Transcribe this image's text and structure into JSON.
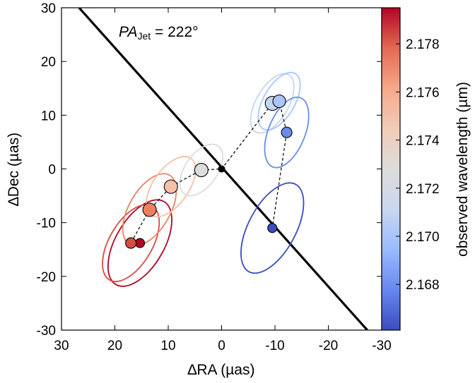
{
  "chart_data": {
    "type": "scatter",
    "title": "",
    "annotation": {
      "main": "PA",
      "subscript": "Jet",
      "rest": " = 222°"
    },
    "xlabel": "∆RA (µas)",
    "ylabel": "∆Dec (µas)",
    "xlim": [
      30,
      -30
    ],
    "ylim": [
      -30,
      30
    ],
    "x_ticks": [
      30,
      20,
      10,
      0,
      -10,
      -20,
      -30
    ],
    "x_tick_labels": [
      "30",
      "20",
      "10",
      "0",
      "-10",
      "-20",
      "-30"
    ],
    "y_ticks": [
      30,
      20,
      10,
      0,
      -10,
      -20,
      -30
    ],
    "y_tick_labels": [
      "30",
      "20",
      "10",
      "0",
      "-10",
      "-20",
      "-30"
    ],
    "grid": false,
    "jet_line": {
      "position_angle_deg": 222,
      "points": [
        [
          26.7,
          30
        ],
        [
          -27.3,
          -30
        ]
      ],
      "color": "#000000"
    },
    "points": [
      {
        "x": 15.3,
        "y": -13.8,
        "wavelength": 2.179,
        "color": "#b40426"
      },
      {
        "x": 17.0,
        "y": -13.8,
        "wavelength": 2.1775,
        "color": "#d44e41"
      },
      {
        "x": 13.5,
        "y": -7.6,
        "wavelength": 2.176,
        "color": "#ec8062"
      },
      {
        "x": 9.5,
        "y": -3.3,
        "wavelength": 2.1745,
        "color": "#f5c0a5"
      },
      {
        "x": 3.8,
        "y": -0.2,
        "wavelength": 2.173,
        "color": "#dcdcdc"
      },
      {
        "x": 0.0,
        "y": 0.0,
        "wavelength": null,
        "color": "#000000"
      },
      {
        "x": -9.5,
        "y": 12.2,
        "wavelength": 2.1715,
        "color": "#c5d6f2"
      },
      {
        "x": -10.8,
        "y": 12.6,
        "wavelength": 2.1705,
        "color": "#a9c6fd"
      },
      {
        "x": -12.2,
        "y": 6.8,
        "wavelength": 2.169,
        "color": "#6a8ce8"
      },
      {
        "x": -9.5,
        "y": -11.0,
        "wavelength": 2.1665,
        "color": "#3b4cc0"
      }
    ],
    "path_order": [
      0,
      1,
      2,
      3,
      4,
      5,
      6,
      7,
      8,
      9
    ],
    "ellipses": [
      {
        "cx": 15.3,
        "cy": -13.8,
        "rx": 9.0,
        "ry": 4.5,
        "angle": 60,
        "color": "#b40426"
      },
      {
        "cx": 17.0,
        "cy": -13.8,
        "rx": 8.0,
        "ry": 4.0,
        "angle": 60,
        "color": "#d44e41"
      },
      {
        "cx": 13.5,
        "cy": -7.6,
        "rx": 7.5,
        "ry": 3.8,
        "angle": 60,
        "color": "#ec8062"
      },
      {
        "cx": 9.5,
        "cy": -3.3,
        "rx": 6.5,
        "ry": 3.3,
        "angle": 55,
        "color": "#f5c0a5"
      },
      {
        "cx": 3.8,
        "cy": -0.2,
        "rx": 5.5,
        "ry": 3.0,
        "angle": 55,
        "color": "#dcdcdc"
      },
      {
        "cx": -9.5,
        "cy": 12.2,
        "rx": 6.2,
        "ry": 3.0,
        "angle": 60,
        "color": "#c5d6f2"
      },
      {
        "cx": -10.8,
        "cy": 12.6,
        "rx": 6.0,
        "ry": 2.9,
        "angle": 60,
        "color": "#a9c6fd"
      },
      {
        "cx": -12.2,
        "cy": 6.8,
        "rx": 7.0,
        "ry": 3.4,
        "angle": 68,
        "color": "#6a8ce8"
      },
      {
        "cx": -9.5,
        "cy": -11.0,
        "rx": 9.3,
        "ry": 4.4,
        "angle": 62,
        "color": "#3b4cc0"
      }
    ],
    "colorbar": {
      "label": "observed wavelength (µm)",
      "min": 2.1661,
      "max": 2.1795,
      "ticks": [
        2.178,
        2.176,
        2.174,
        2.172,
        2.17,
        2.168
      ],
      "tick_labels": [
        "2.178",
        "2.176",
        "2.174",
        "2.172",
        "2.170",
        "2.168"
      ],
      "colormap": [
        "#3b4cc0",
        "#6788ee",
        "#9abbff",
        "#c9d7f0",
        "#dddcdc",
        "#f2cbb7",
        "#f7a889",
        "#e26952",
        "#b40426"
      ]
    }
  }
}
